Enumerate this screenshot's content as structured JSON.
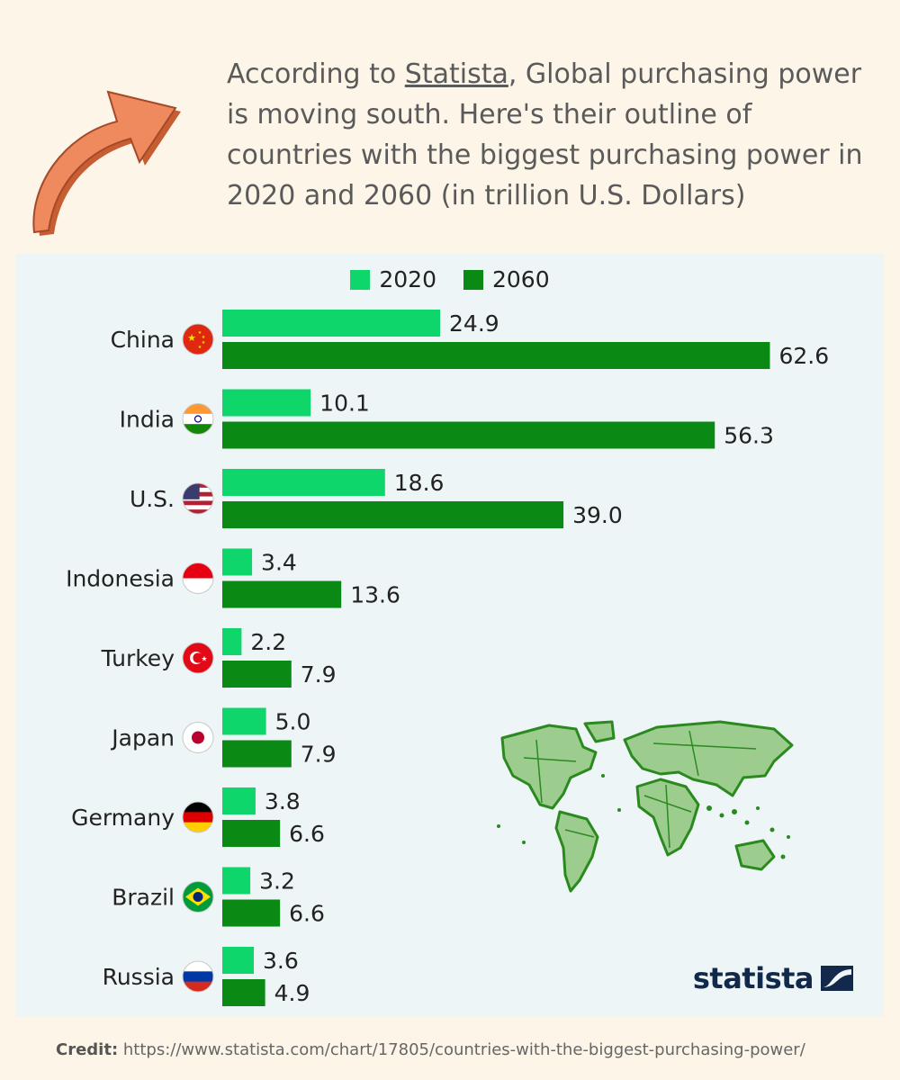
{
  "intro": {
    "before": "According to ",
    "link": "Statista",
    "after": ", Global purchasing power is moving south. Here's their outline of countries with the biggest purchasing power in 2020 and 2060 (in trillion U.S. Dollars)"
  },
  "brand": {
    "name": "statista",
    "logo_icon": "statista-logo-icon"
  },
  "credit": {
    "label": "Credit:",
    "url": "https://www.statista.com/chart/17805/countries-with-the-biggest-purchasing-power/"
  },
  "decorations": {
    "arrow_icon": "curved-arrow-icon",
    "map_icon": "world-map-icon"
  },
  "colors": {
    "series_2020": "#0fd66a",
    "series_2060": "#0a8a14",
    "arrow": "#ee8a5e",
    "map": "#2b8a1f",
    "brand": "#13294b"
  },
  "chart_data": {
    "type": "bar",
    "orientation": "horizontal",
    "categories": [
      "China",
      "India",
      "U.S.",
      "Indonesia",
      "Turkey",
      "Japan",
      "Germany",
      "Brazil",
      "Russia"
    ],
    "flag_icons": [
      "flag-china-icon",
      "flag-india-icon",
      "flag-us-icon",
      "flag-indonesia-icon",
      "flag-turkey-icon",
      "flag-japan-icon",
      "flag-germany-icon",
      "flag-brazil-icon",
      "flag-russia-icon"
    ],
    "series": [
      {
        "name": "2020",
        "values": [
          24.9,
          10.1,
          18.6,
          3.4,
          2.2,
          5.0,
          3.8,
          3.2,
          3.6
        ]
      },
      {
        "name": "2060",
        "values": [
          62.6,
          56.3,
          39.0,
          13.6,
          7.9,
          7.9,
          6.6,
          6.6,
          4.9
        ]
      }
    ],
    "legend_position": "top-center",
    "grid": false,
    "value_labels": true
  }
}
